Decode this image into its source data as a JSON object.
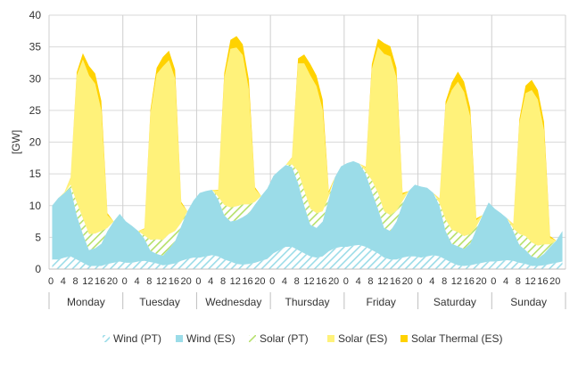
{
  "chart_data": {
    "type": "area",
    "stacked": true,
    "ylabel": "[GW]",
    "ylim": [
      0,
      40
    ],
    "yticks": [
      0,
      5,
      10,
      15,
      20,
      25,
      30,
      35,
      40
    ],
    "grid": "horizontal",
    "legend_position": "bottom",
    "hours_per_day": 24,
    "hour_tick_labels": [
      "0",
      "4",
      "8",
      "12",
      "16",
      "20"
    ],
    "days": [
      "Monday",
      "Tuesday",
      "Wednesday",
      "Thursday",
      "Friday",
      "Saturday",
      "Sunday"
    ],
    "x_step_hours": 2,
    "series": [
      {
        "name": "Wind (PT)",
        "color": "#9BDCE8",
        "pattern": "hatch",
        "values": [
          1.5,
          1.5,
          1.8,
          2.0,
          1.5,
          1.0,
          0.5,
          0.5,
          0.5,
          0.8,
          1.0,
          1.2,
          1.0,
          1.0,
          1.2,
          1.3,
          1.1,
          0.9,
          0.6,
          0.7,
          0.9,
          1.3,
          1.6,
          1.8,
          1.8,
          2.0,
          2.2,
          2.0,
          1.5,
          1.2,
          0.8,
          0.7,
          0.8,
          1.0,
          1.3,
          1.6,
          2.5,
          3.0,
          3.5,
          3.5,
          3.0,
          2.5,
          2.0,
          1.8,
          2.0,
          2.8,
          3.3,
          3.5,
          3.5,
          3.7,
          3.8,
          3.5,
          3.0,
          2.5,
          1.8,
          1.5,
          1.5,
          1.8,
          2.0,
          2.0,
          1.8,
          2.0,
          2.2,
          2.0,
          1.5,
          1.0,
          0.6,
          0.5,
          0.6,
          0.8,
          1.0,
          1.2,
          1.2,
          1.3,
          1.4,
          1.3,
          1.0,
          0.8,
          0.5,
          0.5,
          0.6,
          0.8,
          1.0,
          1.2
        ]
      },
      {
        "name": "Wind (ES)",
        "color": "#9BDCE8",
        "pattern": "solid",
        "values": [
          8.5,
          9.7,
          10.2,
          10.8,
          7.0,
          4.5,
          2.5,
          2.8,
          3.5,
          5.2,
          6.5,
          7.5,
          6.5,
          5.8,
          4.8,
          3.5,
          1.8,
          1.5,
          1.5,
          2.5,
          3.5,
          5.5,
          7.5,
          9.0,
          10.2,
          10.3,
          10.3,
          9.0,
          7.0,
          6.3,
          6.9,
          7.5,
          8.0,
          9.2,
          10.2,
          11.1,
          12.2,
          12.6,
          12.9,
          12.6,
          10.6,
          7.5,
          5.0,
          4.7,
          5.5,
          8.3,
          11.2,
          12.7,
          13.2,
          13.3,
          12.8,
          11.5,
          9.2,
          7.0,
          4.7,
          4.5,
          6.0,
          8.5,
          10.3,
          11.3,
          11.2,
          10.8,
          9.8,
          8.0,
          4.5,
          3.0,
          3.0,
          2.7,
          3.4,
          5.5,
          7.5,
          9.3,
          8.3,
          7.5,
          6.6,
          4.7,
          2.8,
          2.2,
          1.5,
          1.2,
          1.8,
          2.7,
          3.5,
          4.8
        ]
      },
      {
        "name": "Solar (PT)",
        "color": "#B5E06A",
        "pattern": "hatch",
        "values": [
          0,
          0,
          0,
          0.5,
          2.0,
          2.5,
          2.5,
          2.3,
          2.0,
          0.5,
          0,
          0,
          0,
          0,
          0,
          0.5,
          1.7,
          2.3,
          2.5,
          2.3,
          1.6,
          0.5,
          0,
          0,
          0,
          0,
          0,
          0.4,
          1.6,
          2.2,
          2.2,
          2.0,
          1.4,
          0.4,
          0,
          0,
          0,
          0,
          0,
          0.4,
          1.8,
          2.4,
          2.5,
          2.3,
          1.6,
          0.4,
          0,
          0,
          0,
          0,
          0,
          0.4,
          1.8,
          2.5,
          2.6,
          2.5,
          1.7,
          0.4,
          0,
          0,
          0,
          0,
          0,
          0.4,
          1.8,
          2.2,
          2.2,
          2.0,
          1.5,
          0.4,
          0,
          0,
          0,
          0,
          0,
          0.4,
          1.7,
          2.2,
          2.2,
          2.0,
          1.5,
          0.4,
          0,
          0
        ]
      },
      {
        "name": "Solar (ES)",
        "color": "#FFF27A",
        "pattern": "solid",
        "values": [
          0,
          0,
          0.1,
          1.0,
          20.0,
          25.0,
          25.0,
          23.6,
          19.0,
          2.0,
          0,
          0,
          0,
          0,
          0,
          1.0,
          20.0,
          26.0,
          27.3,
          27.4,
          24.0,
          3.0,
          0,
          0,
          0,
          0,
          0,
          1.0,
          20.0,
          25.0,
          25.0,
          23.5,
          18.0,
          2.0,
          0,
          0,
          0,
          0,
          0,
          1.0,
          17.0,
          20.0,
          21.0,
          20.0,
          16.0,
          0.5,
          0,
          0,
          0,
          0,
          0,
          0.6,
          17.5,
          23.0,
          24.8,
          25.0,
          21.0,
          1.0,
          0,
          0,
          0,
          0,
          0,
          0.6,
          18.0,
          22.0,
          23.7,
          22.7,
          18.5,
          1.0,
          0,
          0,
          0,
          0,
          0,
          0.6,
          17.5,
          22.5,
          24.0,
          23.0,
          18.0,
          1.0,
          0,
          0
        ]
      },
      {
        "name": "Solar Thermal (ES)",
        "color": "#FFD200",
        "pattern": "solid",
        "values": [
          0,
          0,
          0,
          0.1,
          0.5,
          1.0,
          1.5,
          1.6,
          1.5,
          0.3,
          0,
          0,
          0,
          0,
          0,
          0.1,
          0.6,
          1.0,
          1.5,
          1.5,
          1.4,
          0.3,
          0,
          0,
          0,
          0,
          0,
          0.1,
          0.8,
          1.4,
          1.8,
          1.7,
          1.6,
          0.3,
          0,
          0,
          0,
          0,
          0,
          0.1,
          0.8,
          1.4,
          1.8,
          1.7,
          1.6,
          0.3,
          0,
          0,
          0,
          0,
          0,
          0.1,
          0.8,
          1.3,
          1.7,
          1.6,
          1.5,
          0.3,
          0,
          0,
          0,
          0,
          0,
          0.1,
          0.6,
          1.2,
          1.6,
          1.6,
          1.4,
          0.3,
          0,
          0,
          0,
          0,
          0,
          0.1,
          0.6,
          1.2,
          1.6,
          1.5,
          1.3,
          0.3,
          0,
          0
        ]
      }
    ]
  }
}
